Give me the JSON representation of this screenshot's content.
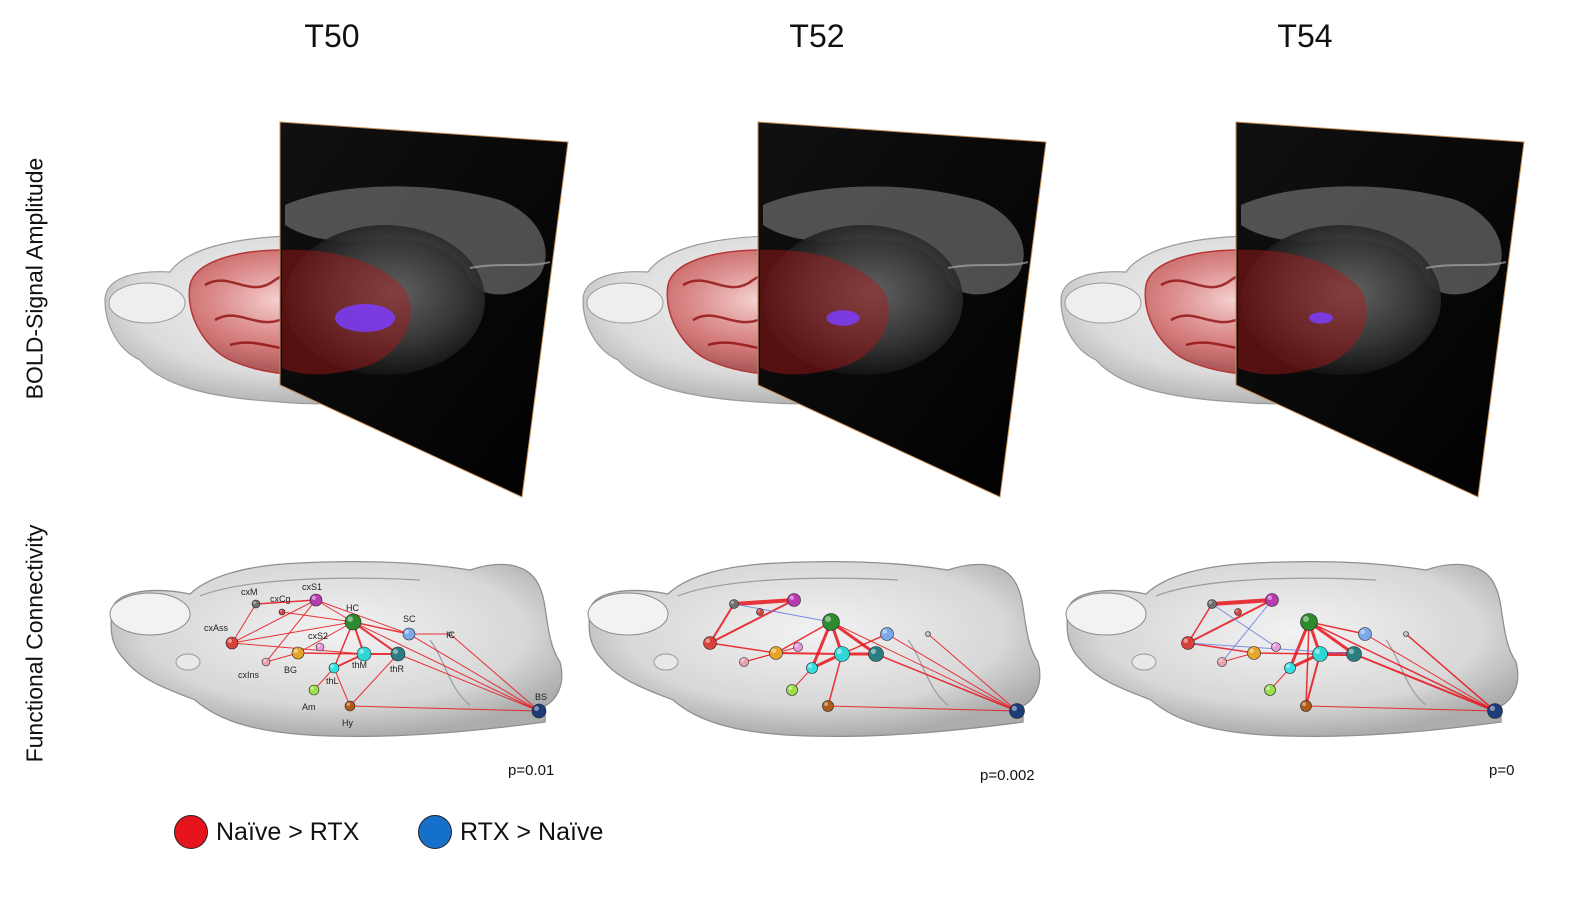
{
  "columns": [
    {
      "title": "T50",
      "p_value": "p=0.01"
    },
    {
      "title": "T52",
      "p_value": "p=0.002"
    },
    {
      "title": "T54",
      "p_value": "p=0"
    }
  ],
  "rows": {
    "top_label": "BOLD-Signal Amplitude",
    "bottom_label": "Functional Connectivity"
  },
  "node_labels": [
    "cxM",
    "cxS1",
    "cxAss",
    "cxCg",
    "HC",
    "SC",
    "cxS2",
    "IC",
    "cxIns",
    "BG",
    "thM",
    "thR",
    "thL",
    "Am",
    "Hy",
    "BS"
  ],
  "legend": [
    {
      "label": "Naïve > RTX",
      "color": "#e8141b"
    },
    {
      "label": "RTX > Naïve",
      "color": "#1470c8"
    }
  ],
  "colors": {
    "edge_increase": "#e8141b",
    "edge_decrease": "#6a7fe0",
    "activation": "#b01818",
    "deep_activation": "#7a3cff"
  }
}
